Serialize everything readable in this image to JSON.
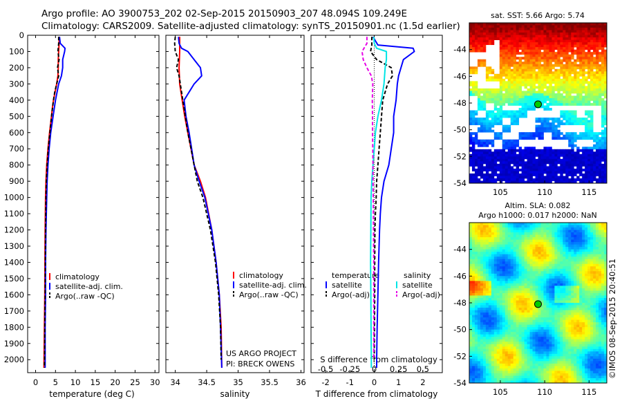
{
  "header": {
    "line1": "Argo profile: AO 3900753_202 02-Sep-2015 20150903_207 48.094S 109.249E",
    "line2": "Climatology: CARS2009. Satellite-adjusted climatology: synTS_20150901.nc (1.5d earlier)"
  },
  "colors": {
    "climatology": "#ff0000",
    "satellite": "#0000ff",
    "argo": "#000000",
    "s_satellite": "#00e5e5",
    "s_argo": "#e600e6",
    "marker": "#00cc00"
  },
  "y_ticks": [
    0,
    100,
    200,
    300,
    400,
    500,
    600,
    700,
    800,
    900,
    1000,
    1100,
    1200,
    1300,
    1400,
    1500,
    1600,
    1700,
    1800,
    1900,
    2000
  ],
  "chart_data": [
    {
      "type": "line",
      "id": "temperature",
      "xlabel": "temperature (deg C)",
      "ylabel": "",
      "xlim": [
        -2,
        31
      ],
      "ylim": [
        2080,
        0
      ],
      "x_ticks": [
        0,
        5,
        10,
        15,
        20,
        25,
        30
      ],
      "x_tick_labels": [
        "0",
        "5",
        "10",
        "15",
        "20",
        "25",
        "30"
      ],
      "legend": {
        "placement": "bottom-center",
        "entries": [
          "climatology",
          "satellite-adj. clim.",
          "Argo(..raw -QC)"
        ]
      },
      "series": [
        {
          "name": "climatology",
          "color": "#ff0000",
          "dash": false,
          "y": [
            10,
            50,
            100,
            150,
            200,
            250,
            300,
            350,
            400,
            450,
            500,
            600,
            700,
            800,
            900,
            1000,
            1200,
            1400,
            1600,
            1800,
            2050
          ],
          "x": [
            5.9,
            5.9,
            5.8,
            5.7,
            5.7,
            5.6,
            5.3,
            4.9,
            4.5,
            4.2,
            4.0,
            3.5,
            3.1,
            2.8,
            2.6,
            2.5,
            2.4,
            2.35,
            2.3,
            2.2,
            2.1
          ]
        },
        {
          "name": "satellite-adj. clim.",
          "color": "#0000ff",
          "dash": false,
          "y": [
            10,
            50,
            80,
            100,
            150,
            200,
            250,
            300,
            400,
            500,
            600,
            700,
            800,
            900,
            1000,
            1200,
            1400,
            1600,
            1800,
            2050
          ],
          "x": [
            6.0,
            6.2,
            7.4,
            7.3,
            6.8,
            6.8,
            6.5,
            5.8,
            5.0,
            4.4,
            3.8,
            3.4,
            3.1,
            2.9,
            2.8,
            2.6,
            2.5,
            2.5,
            2.4,
            2.4
          ]
        },
        {
          "name": "Argo(..raw -QC)",
          "color": "#000000",
          "dash": true,
          "y": [
            10,
            50,
            100,
            150,
            200,
            250,
            300,
            350,
            400,
            500,
            600,
            700,
            800,
            900,
            1000,
            1100,
            1200,
            1400,
            1600,
            1800,
            2000,
            2050
          ],
          "x": [
            5.8,
            5.8,
            5.6,
            5.9,
            5.5,
            5.8,
            5.3,
            4.8,
            4.5,
            4.0,
            3.6,
            3.2,
            2.9,
            2.7,
            2.6,
            2.55,
            2.5,
            2.45,
            2.4,
            2.3,
            2.25,
            2.2
          ]
        }
      ]
    },
    {
      "type": "line",
      "id": "salinity",
      "xlabel": "salinity",
      "ylabel": "",
      "xlim": [
        33.85,
        36.05
      ],
      "ylim": [
        2080,
        0
      ],
      "x_ticks": [
        34,
        34.5,
        35,
        35.5,
        36
      ],
      "x_tick_labels": [
        "34",
        "34.5",
        "35",
        "35.5",
        "36"
      ],
      "legend": {
        "placement": "bottom-right",
        "entries": [
          "climatology",
          "satellite-adj. clim.",
          "Argo(..raw -QC)"
        ]
      },
      "annotations": [
        "US ARGO PROJECT",
        "PI: BRECK OWENS"
      ],
      "series": [
        {
          "name": "climatology",
          "color": "#ff0000",
          "dash": false,
          "y": [
            10,
            50,
            100,
            200,
            300,
            400,
            500,
            600,
            700,
            800,
            900,
            1000,
            1200,
            1400,
            1600,
            1800,
            2050
          ],
          "x": [
            34.07,
            34.07,
            34.07,
            34.06,
            34.07,
            34.11,
            34.15,
            34.2,
            34.25,
            34.3,
            34.4,
            34.48,
            34.58,
            34.65,
            34.7,
            34.73,
            34.74
          ]
        },
        {
          "name": "satellite-adj. clim.",
          "color": "#0000ff",
          "dash": false,
          "y": [
            10,
            50,
            80,
            100,
            150,
            200,
            250,
            300,
            400,
            500,
            600,
            700,
            800,
            900,
            1000,
            1200,
            1400,
            1600,
            1800,
            2050
          ],
          "x": [
            34.05,
            34.06,
            34.1,
            34.2,
            34.3,
            34.4,
            34.42,
            34.3,
            34.14,
            34.17,
            34.22,
            34.26,
            34.3,
            34.38,
            34.47,
            34.58,
            34.65,
            34.7,
            34.72,
            34.74
          ]
        },
        {
          "name": "Argo(..raw -QC)",
          "color": "#000000",
          "dash": true,
          "y": [
            10,
            50,
            100,
            150,
            200,
            250,
            300,
            350,
            400,
            500,
            600,
            700,
            800,
            900,
            1000,
            1200,
            1400,
            1600,
            1800,
            2000
          ],
          "x": [
            34.0,
            33.99,
            34.0,
            34.05,
            34.02,
            34.06,
            34.08,
            34.1,
            34.12,
            34.16,
            34.2,
            34.25,
            34.3,
            34.35,
            34.44,
            34.56,
            34.64,
            34.69,
            34.72,
            34.73
          ]
        }
      ]
    },
    {
      "type": "line",
      "id": "difference",
      "xlabel": "T difference from climatology",
      "xlabel_top": "S difference from climatology",
      "ylabel": "",
      "xlim": [
        -2.6,
        2.8
      ],
      "ylim": [
        2080,
        0
      ],
      "x_ticks": [
        -2,
        -1,
        0,
        1,
        2
      ],
      "x_tick_labels": [
        "-2",
        "-1",
        "0",
        "1",
        "2"
      ],
      "x_ticks_top_labels": [
        "-0.5",
        "-0.25",
        "0",
        "0.25",
        "0.5"
      ],
      "legend": {
        "placement": "bottom-center",
        "headers": [
          "temperature",
          "salinity"
        ],
        "entries": [
          "satellite",
          "Argo(-adj)",
          "satellite",
          "Argo(-adj)"
        ]
      },
      "series": [
        {
          "name": "temperature satellite",
          "color": "#0000ff",
          "dash": false,
          "y": [
            10,
            60,
            80,
            100,
            150,
            200,
            250,
            300,
            400,
            500,
            600,
            700,
            800,
            900,
            1000,
            1100,
            1200,
            1400,
            1600,
            1800,
            2000,
            2050
          ],
          "x": [
            -0.05,
            0.15,
            1.6,
            1.65,
            1.2,
            1.1,
            1.0,
            0.95,
            0.9,
            0.8,
            0.8,
            0.7,
            0.6,
            0.4,
            0.3,
            0.25,
            0.22,
            0.18,
            0.15,
            0.12,
            0.1,
            0.1
          ]
        },
        {
          "name": "temperature Argo(-adj)",
          "color": "#000000",
          "dash": true,
          "y": [
            10,
            60,
            100,
            150,
            200,
            250,
            300,
            400,
            500,
            600,
            700,
            800,
            900,
            1000,
            1100,
            1200,
            1400,
            1600,
            1800,
            2000
          ],
          "x": [
            -0.1,
            -0.1,
            -0.15,
            0.1,
            0.7,
            0.75,
            0.55,
            0.35,
            0.3,
            0.25,
            0.2,
            0.15,
            0.1,
            0.08,
            0.05,
            0.03,
            0.02,
            0.02,
            0.01,
            0.0
          ]
        },
        {
          "name": "salinity satellite",
          "color": "#00e5e5",
          "dash": false,
          "y": [
            10,
            50,
            80,
            100,
            150,
            200,
            300,
            400,
            500,
            600,
            700,
            800,
            900,
            1000,
            1200,
            1400,
            1600,
            1800,
            2000,
            2050
          ],
          "x": [
            -0.02,
            0.0,
            0.1,
            0.5,
            0.5,
            0.45,
            0.4,
            0.3,
            0.15,
            0.05,
            0.0,
            -0.05,
            -0.1,
            -0.13,
            -0.14,
            -0.15,
            -0.14,
            -0.13,
            -0.12,
            -0.12
          ]
        },
        {
          "name": "salinity Argo(-adj)",
          "color": "#e600e6",
          "dash": true,
          "y": [
            10,
            50,
            100,
            150,
            200,
            250,
            300,
            400,
            500,
            600,
            700,
            800,
            900,
            1000,
            1200,
            1400,
            1600,
            1800,
            2000
          ],
          "x": [
            -0.3,
            -0.3,
            -0.5,
            -0.45,
            -0.3,
            -0.12,
            -0.06,
            -0.08,
            -0.07,
            -0.07,
            -0.06,
            -0.05,
            -0.05,
            -0.04,
            -0.03,
            -0.02,
            -0.02,
            -0.02,
            -0.02
          ]
        }
      ]
    },
    {
      "type": "heatmap",
      "id": "sst_map",
      "title": "sat. SST: 5.66  Argo: 5.74",
      "xlim": [
        101.5,
        117
      ],
      "ylim": [
        -54,
        -42
      ],
      "x_ticks": [
        105,
        110,
        115
      ],
      "y_ticks": [
        -44,
        -46,
        -48,
        -50,
        -52,
        -54
      ],
      "argo_position": {
        "lon": 109.249,
        "lat": -48.094
      }
    },
    {
      "type": "heatmap",
      "id": "sla_map",
      "title": "Altim. SLA: 0.082",
      "subtitle": "Argo h1000: 0.017 h2000: NaN",
      "xlim": [
        101.5,
        117
      ],
      "ylim": [
        -54,
        -42
      ],
      "x_ticks": [
        105,
        110,
        115
      ],
      "y_ticks": [
        -44,
        -46,
        -48,
        -50,
        -52,
        -54
      ],
      "argo_position": {
        "lon": 109.249,
        "lat": -48.094
      }
    }
  ],
  "side_label": "©IMOS 08-Sep-2015 20:40:51"
}
